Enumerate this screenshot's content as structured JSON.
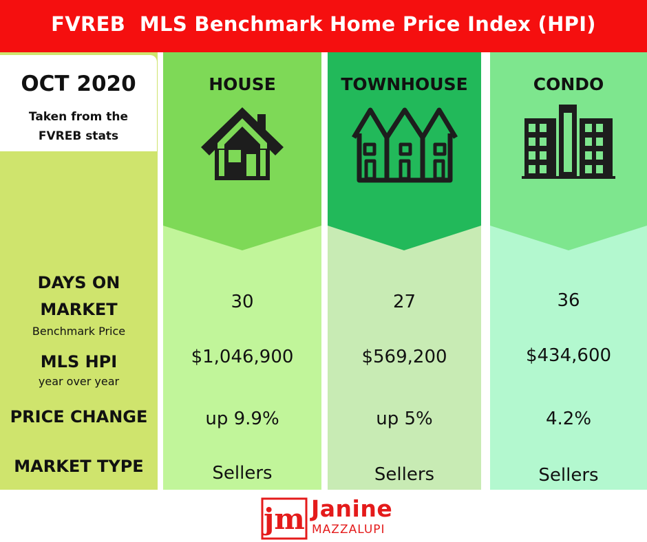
{
  "header": {
    "title": "FVREB  MLS Benchmark Home Price Index (HPI)"
  },
  "info": {
    "date": "OCT 2020",
    "source_line1": "Taken from the",
    "source_line2": "FVREB stats"
  },
  "row_labels": {
    "days_line1": "DAYS ON",
    "days_line2": "MARKET",
    "benchmark_price": "Benchmark Price",
    "mls_hpi": "MLS HPI",
    "year_over_year": "year over year",
    "price_change": "PRICE CHANGE",
    "market_type": "MARKET TYPE"
  },
  "columns": [
    {
      "title": "HOUSE",
      "icon": "house-icon",
      "days_on_market": "30",
      "mls_hpi": "$1,046,900",
      "price_change": "up 9.9%",
      "market_type": "Sellers",
      "header_color": "#7ed957",
      "body_color": "#c1f59a"
    },
    {
      "title": "TOWNHOUSE",
      "icon": "townhouse-icon",
      "days_on_market": "27",
      "mls_hpi": "$569,200",
      "price_change": "up 5%",
      "market_type": "Sellers",
      "header_color": "#22b95a",
      "body_color": "#c8ebb4"
    },
    {
      "title": "CONDO",
      "icon": "condo-building-icon",
      "days_on_market": "36",
      "mls_hpi": "$434,600",
      "price_change": "4.2%",
      "market_type": "Sellers",
      "header_color": "#7ee68e",
      "body_color": "#b3f8cf"
    }
  ],
  "footer": {
    "logo_text": "jm",
    "name": "Janine",
    "surname": "MAZZALUPI"
  },
  "colors": {
    "banner": "#f50f0f",
    "left_panel": "#cfe46d",
    "brand_red": "#e41b1b"
  }
}
